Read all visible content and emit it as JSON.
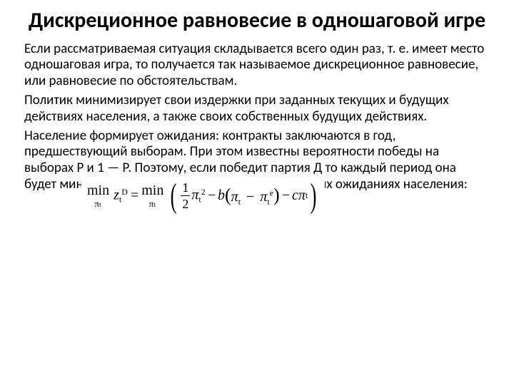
{
  "colors": {
    "background": "#ffffff",
    "text": "#000000"
  },
  "typography": {
    "title_fontsize": 30,
    "body_fontsize": 19,
    "formula_fontsize": 20,
    "font_family_body": "Calibri, Arial, sans-serif",
    "font_family_formula": "Times New Roman, serif"
  },
  "title": "Дискреционное равновесие в одношаговой игре",
  "paragraphs": [
    "Если рассматриваемая ситуация складывается всего один раз, т. е. имеет место одношаговая игра, то получается так называемое дискреционное равновесие, или равновесие по обстоятельствам.",
    "Политик минимизирует свои издержки при заданных текущих и будущих действиях населения, а также своих собственных будущих действиях.",
    "Население формирует ожидания: контракты заключаются в год, предшествующий выборам. При этом известны вероятности победы на выборах Р и 1 — Р. Поэтому, если победит партия Д то каждый период она будет минимизировать свои издержки при заданных ожиданиях населения:"
  ],
  "formula": {
    "lhs_min_over": "πₜ",
    "lhs_var": "z",
    "lhs_sub": "t",
    "lhs_sup": "D",
    "rhs_min_over": "πₜ",
    "frac_num": "1",
    "frac_den": "2",
    "pi_sq_base": "π",
    "pi_sq_sub": "t",
    "pi_sq_sup": "2",
    "b": "b",
    "inner_pi1_base": "π",
    "inner_pi1_sub": "t",
    "inner_pi2_base": "π",
    "inner_pi2_sub": "t",
    "inner_pi2_sup": "e",
    "c": "c",
    "tail_pi_base": "π",
    "tail_pi_sub": "t",
    "min_label": "min",
    "eq": "=",
    "minus": "−"
  }
}
